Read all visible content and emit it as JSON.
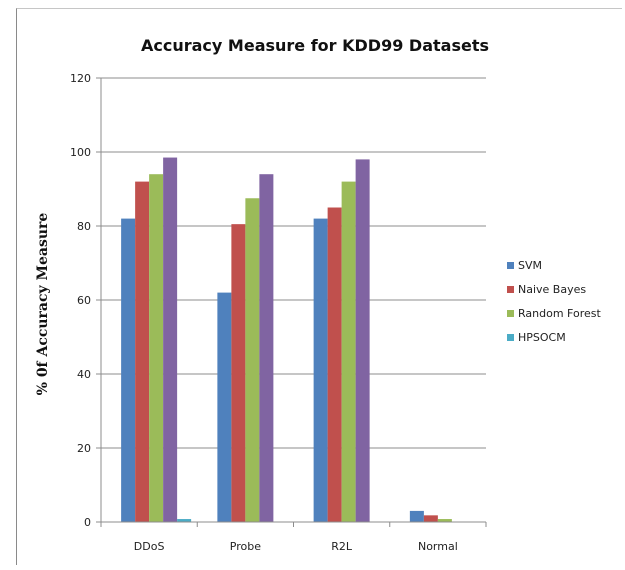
{
  "chart_data": {
    "type": "bar",
    "title": "Accuracy Measure for KDD99 Datasets",
    "xlabel": "",
    "ylabel": "% 0f Accuracy Measure",
    "categories": [
      "DDoS",
      "Probe",
      "R2L",
      "Normal"
    ],
    "ylim": [
      0,
      120
    ],
    "yticks": [
      0,
      20,
      40,
      60,
      80,
      100,
      120
    ],
    "grid": true,
    "legend_position": "right",
    "series": [
      {
        "name": "SVM",
        "color": "#4f81bd",
        "values": [
          82,
          62,
          82,
          3
        ]
      },
      {
        "name": "Naive Bayes",
        "color": "#c0504d",
        "values": [
          92,
          80.5,
          85,
          1.8
        ]
      },
      {
        "name": "Random Forest",
        "color": "#9bbb59",
        "values": [
          94,
          87.5,
          92,
          0.8
        ]
      },
      {
        "name": "HPSOCM",
        "color": "#8064a2",
        "values": [
          98.5,
          94,
          98,
          0
        ]
      }
    ],
    "extra_marks": [
      {
        "category_index": 0,
        "value": 0.8,
        "color": "#4bacc6"
      }
    ]
  }
}
